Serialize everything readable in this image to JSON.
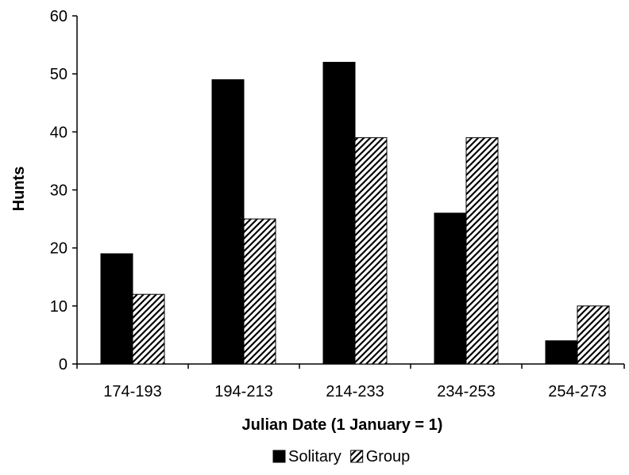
{
  "chart_data": {
    "type": "bar",
    "categories": [
      "174-193",
      "194-213",
      "214-233",
      "234-253",
      "254-273"
    ],
    "series": [
      {
        "name": "Solitary",
        "values": [
          19,
          49,
          52,
          26,
          4
        ],
        "color": "#000000",
        "pattern": "solid"
      },
      {
        "name": "Group",
        "values": [
          12,
          25,
          39,
          39,
          10
        ],
        "color": "#000000",
        "pattern": "diagonal-hatch"
      }
    ],
    "title": "",
    "xlabel": "Julian Date (1 January = 1)",
    "ylabel": "Hunts",
    "ylim": [
      0,
      60
    ],
    "yticks": [
      0,
      10,
      20,
      30,
      40,
      50,
      60
    ],
    "grid": false,
    "legend": "bottom"
  }
}
